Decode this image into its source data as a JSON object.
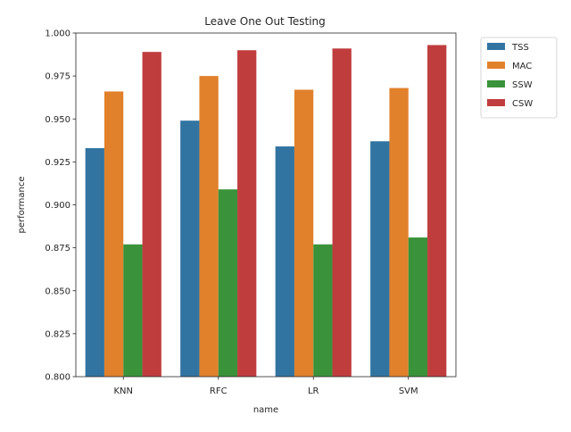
{
  "chart_data": {
    "type": "bar",
    "title": "Leave One Out Testing",
    "xlabel": "name",
    "ylabel": "performance",
    "categories": [
      "KNN",
      "RFC",
      "LR",
      "SVM"
    ],
    "ylim": [
      0.8,
      1.0
    ],
    "yticks": [
      0.8,
      0.825,
      0.85,
      0.875,
      0.9,
      0.925,
      0.95,
      0.975,
      1.0
    ],
    "ytick_labels": [
      "0.800",
      "0.825",
      "0.850",
      "0.875",
      "0.900",
      "0.925",
      "0.950",
      "0.975",
      "1.000"
    ],
    "grid": false,
    "legend_position": "outside-top-right",
    "series": [
      {
        "name": "TSS",
        "color": "#3274a1",
        "values": [
          0.933,
          0.949,
          0.934,
          0.937
        ]
      },
      {
        "name": "MAC",
        "color": "#e1812c",
        "values": [
          0.966,
          0.975,
          0.967,
          0.968
        ]
      },
      {
        "name": "SSW",
        "color": "#3a923a",
        "values": [
          0.877,
          0.909,
          0.877,
          0.881
        ]
      },
      {
        "name": "CSW",
        "color": "#c03d3e",
        "values": [
          0.989,
          0.99,
          0.991,
          0.993
        ]
      }
    ]
  }
}
